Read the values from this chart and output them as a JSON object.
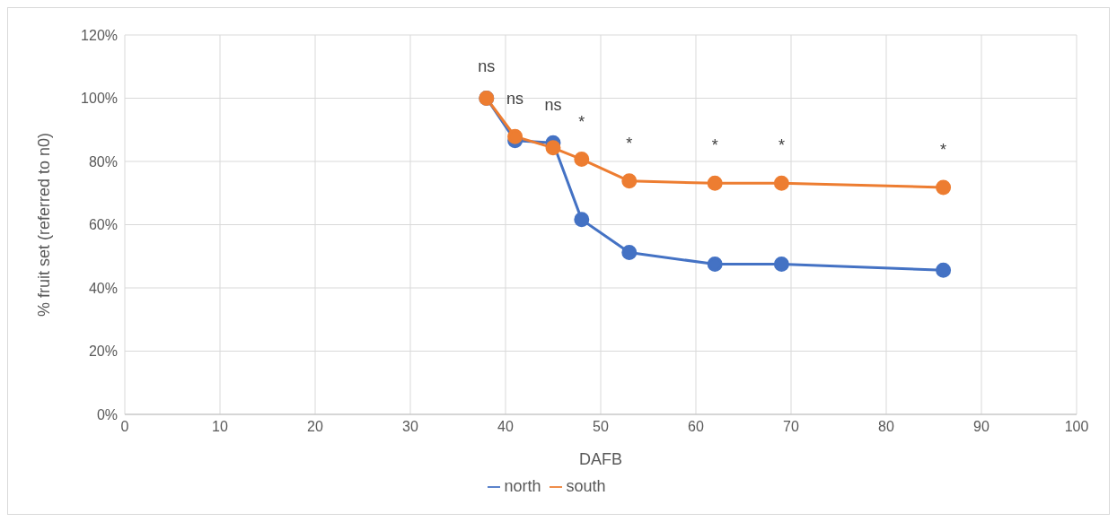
{
  "chart_data": {
    "type": "line",
    "xlabel": "DAFB",
    "ylabel": "% fruit set (referred to n0)",
    "x": [
      38,
      41,
      45,
      48,
      53,
      62,
      69,
      86
    ],
    "series": [
      {
        "name": "north",
        "color": "#4472c4",
        "values": [
          100,
          86.6,
          85.9,
          61.6,
          51.2,
          47.5,
          47.5,
          45.6
        ]
      },
      {
        "name": "south",
        "color": "#ed7d31",
        "values": [
          100,
          87.9,
          84.3,
          80.7,
          73.8,
          73.1,
          73.1,
          71.8
        ]
      }
    ],
    "xlim": [
      0,
      100
    ],
    "xticks": [
      0,
      10,
      20,
      30,
      40,
      50,
      60,
      70,
      80,
      90,
      100
    ],
    "ylim": [
      0,
      120
    ],
    "yticks": [
      {
        "value": 0,
        "label": "0%"
      },
      {
        "value": 20,
        "label": "20%"
      },
      {
        "value": 40,
        "label": "40%"
      },
      {
        "value": 60,
        "label": "60%"
      },
      {
        "value": 80,
        "label": "80%"
      },
      {
        "value": 100,
        "label": "100%"
      },
      {
        "value": 120,
        "label": "120%"
      }
    ],
    "annotations": [
      "ns",
      "ns",
      "ns",
      "*",
      "*",
      "*",
      "*",
      "*"
    ],
    "grid": true,
    "legend": "bottom",
    "marker": "circle",
    "line_style": "solid"
  }
}
